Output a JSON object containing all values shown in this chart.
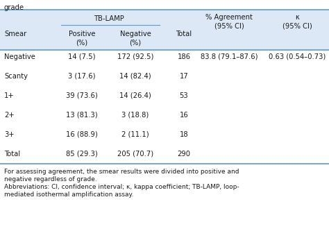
{
  "title_top": "grade",
  "rows": [
    [
      "Negative",
      "14 (7.5)",
      "172 (92.5)",
      "186",
      "83.8 (79.1–87.6)",
      "0.63 (0.54–0.73)"
    ],
    [
      "Scanty",
      "3 (17.6)",
      "14 (82.4)",
      "17",
      "",
      ""
    ],
    [
      "1+",
      "39 (73.6)",
      "14 (26.4)",
      "53",
      "",
      ""
    ],
    [
      "2+",
      "13 (81.3)",
      "3 (18.8)",
      "16",
      "",
      ""
    ],
    [
      "3+",
      "16 (88.9)",
      "2 (11.1)",
      "18",
      "",
      ""
    ],
    [
      "Total",
      "85 (29.3)",
      "205 (70.7)",
      "290",
      "",
      ""
    ]
  ],
  "footnotes": [
    "For assessing agreement, the smear results were divided into positive and",
    "negative regardless of grade.",
    "Abbreviations: CI, confidence interval; κ, kappa coefficient; TB-LAMP, loop-",
    "mediated isothermal amplification assay."
  ],
  "header_bg": "#dce8f5",
  "line_color": "#5b9bd5",
  "bg_color": "#ffffff",
  "text_color": "#1a1a1a",
  "font_size": 7.2,
  "small_font_size": 6.5
}
